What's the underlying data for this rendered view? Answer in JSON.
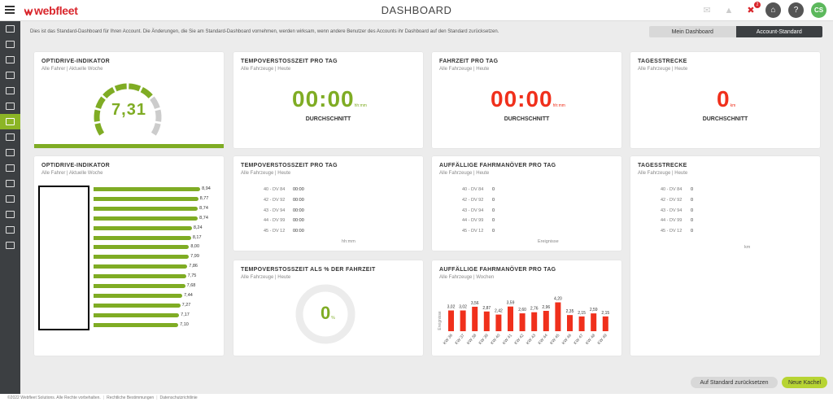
{
  "header": {
    "logo": "webfleet",
    "title": "DASHBOARD",
    "alert_count": "2",
    "avatar_initials": "CS"
  },
  "info_text": "Dies ist das Standard-Dashboard für Ihren Account. Die Änderungen, die Sie am Standard-Dashboard vornehmen, werden wirksam, wenn andere Benutzer des Accounts ihr Dashboard auf den Standard zurücksetzen.",
  "tabs": {
    "my": "Mein Dashboard",
    "standard": "Account-Standard"
  },
  "cards": {
    "od1": {
      "title": "OPTIDRIVE-INDIKATOR",
      "sub": "Alle Fahrer | Aktuelle Woche",
      "value": "7,31"
    },
    "tp1": {
      "title": "TEMPOVERSTOSSZEIT PRO TAG",
      "sub": "Alle Fahrzeuge | Heute",
      "value": "00:00",
      "unit": "hh:mm",
      "label": "DURCHSCHNITT"
    },
    "fz": {
      "title": "FAHRZEIT PRO TAG",
      "sub": "Alle Fahrzeuge | Heute",
      "value": "00:00",
      "unit": "hh:mm",
      "label": "DURCHSCHNITT"
    },
    "ts1": {
      "title": "TAGESSTRECKE",
      "sub": "Alle Fahrzeuge | Heute",
      "value": "0",
      "unit": "km",
      "label": "DURCHSCHNITT"
    },
    "od2": {
      "title": "OPTIDRIVE-INDIKATOR",
      "sub": "Alle Fahrer | Aktuelle Woche",
      "values": [
        "8,94",
        "8,77",
        "8,74",
        "8,74",
        "8,24",
        "8,17",
        "8,00",
        "7,99",
        "7,86",
        "7,75",
        "7,68",
        "7,44",
        "7,27",
        "7,17",
        "7,10"
      ]
    },
    "tp2": {
      "title": "TEMPOVERSTOSSZEIT PRO TAG",
      "sub": "Alle Fahrzeuge | Heute",
      "rows": [
        {
          "l": "40 - DV 84",
          "v": "00:00"
        },
        {
          "l": "42 - DV 92",
          "v": "00:00"
        },
        {
          "l": "43 - DV 94",
          "v": "00:00"
        },
        {
          "l": "44 - DV 99",
          "v": "00:00"
        },
        {
          "l": "45 - DV 12",
          "v": "00:00"
        }
      ],
      "foot": "hh:mm"
    },
    "af1": {
      "title": "AUFFÄLLIGE FAHRMANÖVER PRO TAG",
      "sub": "Alle Fahrzeuge | Heute",
      "rows": [
        {
          "l": "40 - DV 84",
          "v": "0"
        },
        {
          "l": "42 - DV 92",
          "v": "0"
        },
        {
          "l": "43 - DV 94",
          "v": "0"
        },
        {
          "l": "44 - DV 99",
          "v": "0"
        },
        {
          "l": "45 - DV 12",
          "v": "0"
        }
      ],
      "foot": "Ereignisse"
    },
    "ts2": {
      "title": "TAGESSTRECKE",
      "sub": "Alle Fahrzeuge | Heute",
      "rows": [
        {
          "l": "40 - DV 84",
          "v": "0"
        },
        {
          "l": "42 - DV 92",
          "v": "0"
        },
        {
          "l": "43 - DV 94",
          "v": "0"
        },
        {
          "l": "44 - DV 99",
          "v": "0"
        },
        {
          "l": "45 - DV 12",
          "v": "0"
        }
      ],
      "foot": "km"
    },
    "tpp": {
      "title": "TEMPOVERSTOSSZEIT ALS % DER FAHRZEIT",
      "sub": "Alle Fahrzeuge | Heute",
      "value": "0",
      "unit": "%"
    },
    "af2": {
      "title": "AUFFÄLLIGE FAHRMANÖVER PRO TAG",
      "sub": "Alle Fahrzeuge | Wochen"
    }
  },
  "chart_data": [
    {
      "type": "bar",
      "orientation": "horizontal",
      "values": [
        8.94,
        8.77,
        8.74,
        8.74,
        8.24,
        8.17,
        8.0,
        7.99,
        7.86,
        7.75,
        7.68,
        7.44,
        7.27,
        7.17,
        7.1
      ],
      "color": "#7fac24"
    },
    {
      "type": "bar",
      "categories": [
        "KW 36",
        "KW 37",
        "KW 38",
        "KW 39",
        "KW 40",
        "KW 41",
        "KW 42",
        "KW 43",
        "KW 44",
        "KW 45",
        "KW 46",
        "KW 47",
        "KW 48",
        "KW 49"
      ],
      "values": [
        3.02,
        3.02,
        3.56,
        2.87,
        2.42,
        3.59,
        2.6,
        2.76,
        2.96,
        4.2,
        2.35,
        2.15,
        2.59,
        2.15
      ],
      "labels": [
        "3,02",
        "3,02",
        "3,56",
        "2,87",
        "2,42",
        "3,59",
        "2,60",
        "2,76",
        "2,96",
        "4,20",
        "2,35",
        "2,15",
        "2,59",
        "2,15"
      ],
      "ylabel": "Ereignisse",
      "color": "#f0301c"
    }
  ],
  "buttons": {
    "reset": "Auf Standard zurücksetzen",
    "new": "Neue Kachel"
  },
  "footer": {
    "copyright": "©2022 Webfleet Solutions. Alle Rechte vorbehalten.",
    "legal": "Rechtliche Bestimmungen",
    "privacy": "Datenschutzrichtlinie"
  }
}
